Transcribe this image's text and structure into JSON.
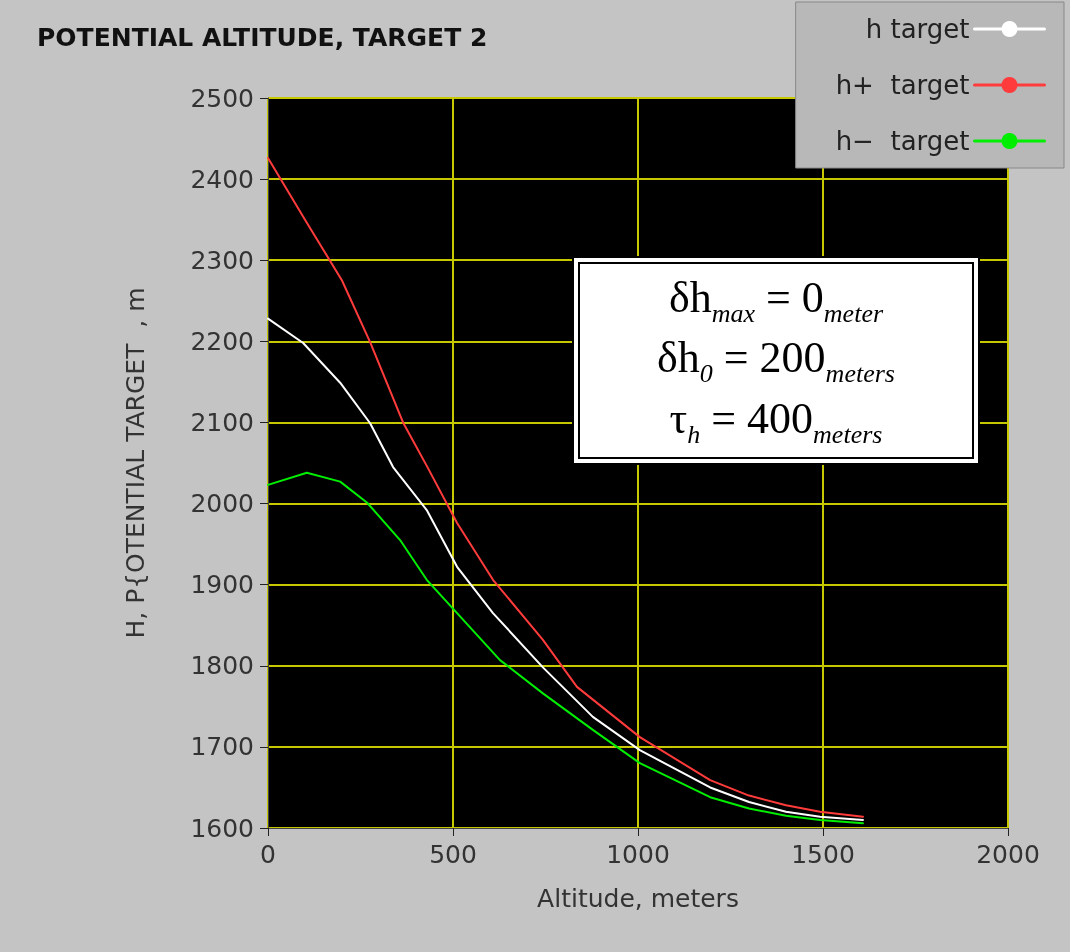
{
  "chart_data": {
    "type": "line",
    "title": "POTENTIAL ALTITUDE, TARGET 2",
    "xlabel": "Altitude, meters",
    "ylabel": "H, P{OTENTIAL TARGET  , m",
    "series": [
      {
        "name": "h target",
        "color": "#ffffff",
        "x": [
          0,
          95,
          195,
          276,
          338,
          429,
          511,
          608,
          743,
          878,
          1005,
          1195,
          1300,
          1400,
          1492,
          1608
        ],
        "values": [
          2228,
          2198,
          2149,
          2099,
          2045,
          1992,
          1922,
          1865,
          1798,
          1737,
          1696,
          1650,
          1632,
          1620,
          1614,
          1610
        ]
      },
      {
        "name": "h+  target",
        "color": "#ff3b3b",
        "x": [
          0,
          100,
          200,
          276,
          365,
          432,
          511,
          608,
          743,
          835,
          1005,
          1195,
          1300,
          1400,
          1492,
          1608
        ],
        "values": [
          2426,
          2350,
          2275,
          2199,
          2100,
          2044,
          1976,
          1906,
          1832,
          1774,
          1712,
          1659,
          1640,
          1628,
          1620,
          1614
        ]
      },
      {
        "name": "h−  target",
        "color": "#00ee00",
        "x": [
          0,
          105,
          195,
          268,
          357,
          429,
          511,
          627,
          743,
          878,
          1005,
          1195,
          1300,
          1400,
          1492,
          1608
        ],
        "values": [
          2023,
          2038,
          2027,
          2001,
          1955,
          1906,
          1865,
          1807,
          1766,
          1721,
          1680,
          1638,
          1624,
          1615,
          1610,
          1606
        ]
      }
    ],
    "xlim": [
      0,
      2000
    ],
    "xticks": [
      0,
      500,
      1000,
      1500,
      2000
    ],
    "ylim": [
      1600,
      2500
    ],
    "yticks": [
      1600,
      1700,
      1800,
      1900,
      2000,
      2100,
      2200,
      2300,
      2400,
      2500
    ],
    "grid": true,
    "legend": "top right",
    "marker": "none",
    "line_style": "solid",
    "annotations": [
      "δh$_{max}$ = 0$_{meter}$",
      "δh$_{0}$ = 200$_{meters}$",
      "τ$_{h}$ = 400$_{meters}$"
    ]
  }
}
